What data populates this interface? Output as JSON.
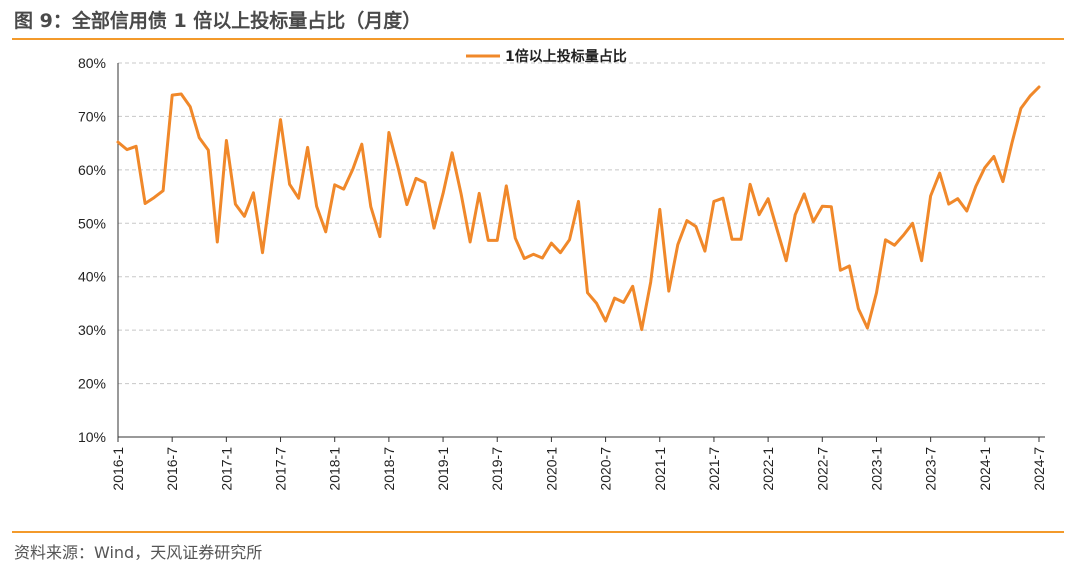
{
  "header": {
    "title": "图 9：全部信用债 1 倍以上投标量占比（月度）"
  },
  "footer": {
    "source": "资料来源：Wind，天风证券研究所"
  },
  "colors": {
    "accent": "#f39a2b",
    "line": "#f0882a",
    "grid": "#c8c8c8",
    "axis": "#333333"
  },
  "chart_data": {
    "type": "line",
    "title": "",
    "xlabel": "",
    "ylabel": "",
    "ylim": [
      10,
      80
    ],
    "yticks": [
      10,
      20,
      30,
      40,
      50,
      60,
      70,
      80
    ],
    "yticklabels": [
      "10%",
      "20%",
      "30%",
      "40%",
      "50%",
      "60%",
      "70%",
      "80%"
    ],
    "grid": true,
    "legend_position": "top-center",
    "xticklabels": [
      "2016-1",
      "2016-7",
      "2017-1",
      "2017-7",
      "2018-1",
      "2018-7",
      "2019-1",
      "2019-7",
      "2020-1",
      "2020-7",
      "2021-1",
      "2021-7",
      "2022-1",
      "2022-7",
      "2023-1",
      "2023-7",
      "2024-1",
      "2024-7"
    ],
    "x_start": "2016-1",
    "x_end": "2024-7",
    "series": [
      {
        "name": "1倍以上投标量占比",
        "values": [
          65.2,
          63.8,
          64.4,
          53.7,
          54.8,
          56.1,
          74.0,
          74.2,
          71.8,
          66.0,
          63.7,
          46.5,
          65.5,
          53.6,
          51.3,
          55.7,
          44.5,
          57.2,
          69.4,
          57.3,
          54.7,
          64.2,
          53.2,
          48.4,
          57.2,
          56.4,
          60.1,
          64.8,
          53.1,
          47.5,
          67.0,
          60.6,
          53.5,
          58.4,
          57.6,
          49.1,
          55.6,
          63.2,
          55.5,
          46.5,
          55.6,
          46.8,
          46.8,
          57.0,
          47.2,
          43.4,
          44.2,
          43.5,
          46.3,
          44.5,
          46.9,
          54.1,
          37.0,
          35.0,
          31.7,
          36.0,
          35.2,
          38.2,
          30.1,
          39.0,
          52.6,
          37.3,
          46.0,
          50.5,
          49.4,
          44.8,
          54.1,
          54.7,
          47.0,
          47.0,
          57.3,
          51.6,
          54.6,
          48.8,
          43.0,
          51.6,
          55.5,
          50.3,
          53.2,
          53.1,
          41.2,
          42.0,
          34.0,
          30.4,
          37.0,
          46.9,
          45.9,
          47.8,
          50.0,
          43.0,
          55.1,
          59.4,
          53.6,
          54.6,
          52.3,
          56.9,
          60.4,
          62.5,
          57.8,
          65.0,
          71.5,
          73.8,
          75.5
        ]
      }
    ]
  }
}
